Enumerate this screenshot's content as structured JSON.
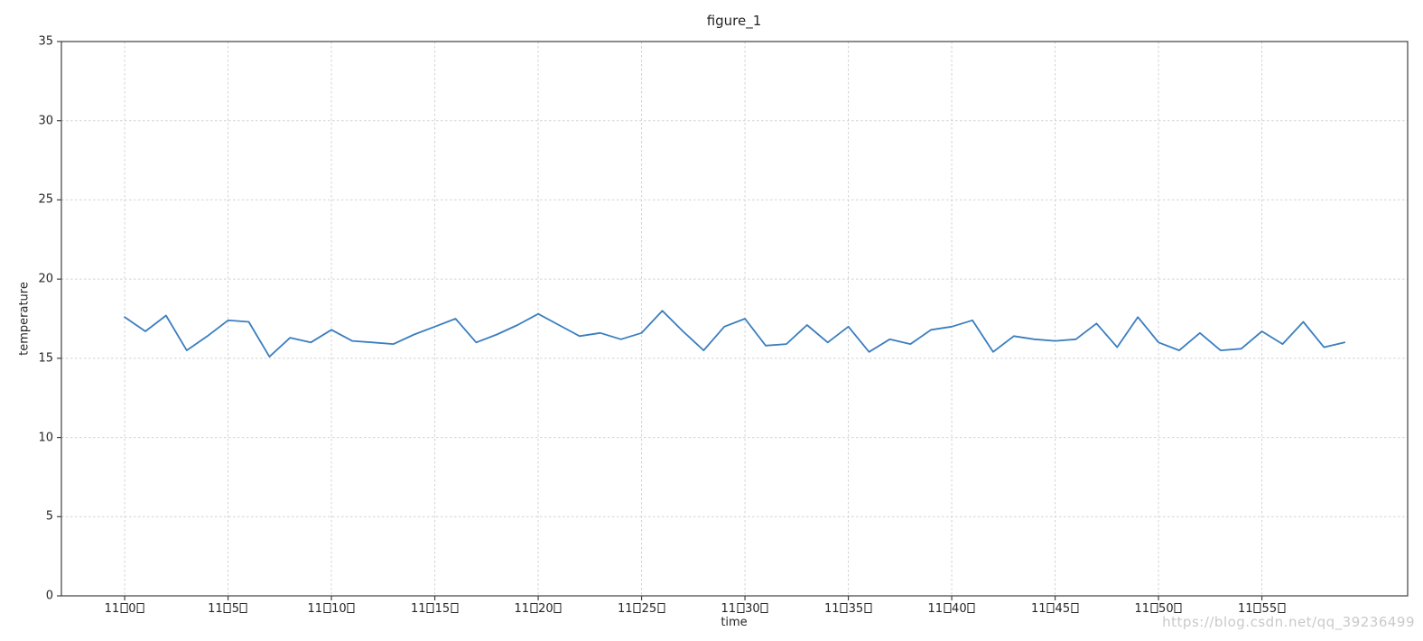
{
  "figure": {
    "title": "figure_1",
    "watermark": "https://blog.csdn.net/qq_39236499"
  },
  "chart_data": {
    "type": "line",
    "title": "figure_1",
    "xlabel": "time",
    "ylabel": "temperature",
    "grid": true,
    "legend": false,
    "ylim": [
      0,
      35
    ],
    "xlim_minutes": [
      -3.06,
      62.05
    ],
    "y_ticks": [
      0,
      5,
      10,
      15,
      20,
      25,
      30,
      35
    ],
    "x_tick_minutes": [
      0,
      5,
      10,
      15,
      20,
      25,
      30,
      35,
      40,
      45,
      50,
      55
    ],
    "x_tick_labels": [
      "11□0□",
      "11□5□",
      "11□10□",
      "11□15□",
      "11□20□",
      "11□25□",
      "11□30□",
      "11□35□",
      "11□40□",
      "11□45□",
      "11□50□",
      "11□55□"
    ],
    "series": [
      {
        "name": "temperature",
        "x_minutes": [
          0,
          1,
          2,
          3,
          4,
          5,
          6,
          7,
          8,
          9,
          10,
          11,
          12,
          13,
          14,
          15,
          16,
          17,
          18,
          19,
          20,
          21,
          22,
          23,
          24,
          25,
          26,
          27,
          28,
          29,
          30,
          31,
          32,
          33,
          34,
          35,
          36,
          37,
          38,
          39,
          40,
          41,
          42,
          43,
          44,
          45,
          46,
          47,
          48,
          49,
          50,
          51,
          52,
          53,
          54,
          55,
          56,
          57,
          58,
          59
        ],
        "values": [
          17.6,
          16.7,
          17.7,
          15.5,
          16.4,
          17.4,
          17.3,
          15.1,
          16.3,
          16.0,
          16.8,
          16.1,
          16.0,
          15.9,
          16.5,
          17.0,
          17.5,
          16.0,
          16.5,
          17.1,
          17.8,
          17.1,
          16.4,
          16.6,
          16.2,
          16.6,
          18.0,
          16.7,
          15.5,
          17.0,
          17.5,
          15.8,
          15.9,
          17.1,
          16.0,
          17.0,
          15.4,
          16.2,
          15.9,
          16.8,
          17.0,
          17.4,
          15.4,
          16.4,
          16.2,
          16.1,
          16.2,
          17.2,
          15.7,
          17.6,
          16.0,
          15.5,
          16.6,
          15.5,
          15.6,
          16.7,
          15.9,
          17.3,
          15.7,
          16.0
        ]
      }
    ],
    "colors": {
      "line": "#3a7ebf",
      "grid": "#d2d2d2",
      "spine": "#404040",
      "text": "#262626",
      "watermark": "#c9c9c9",
      "background": "#ffffff"
    }
  }
}
